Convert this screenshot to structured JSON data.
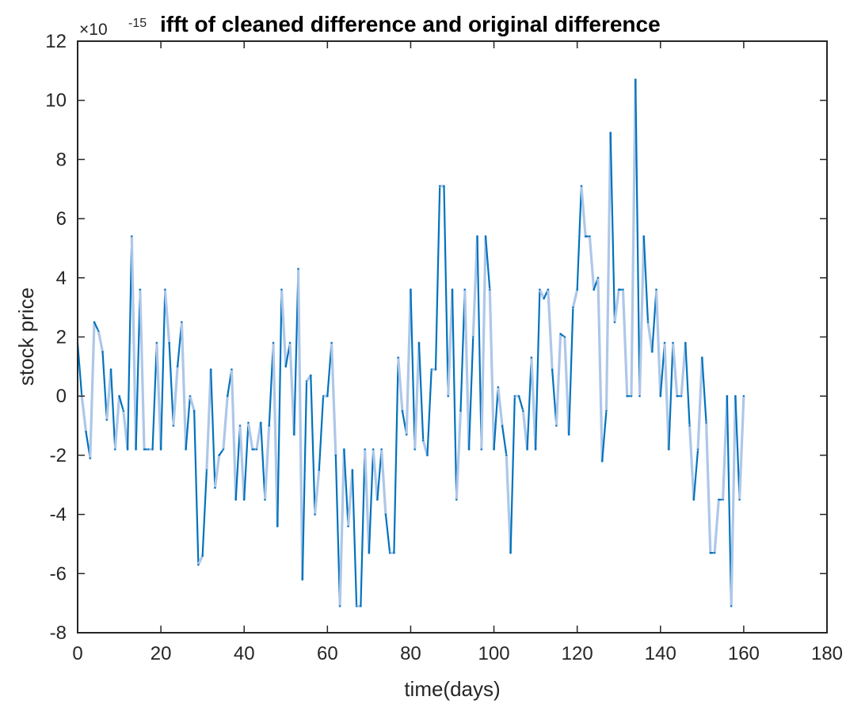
{
  "chart_data": {
    "type": "line",
    "title": "ifft of cleaned difference and original difference",
    "xlabel": "time(days)",
    "ylabel": "stock price",
    "y_exponent": {
      "base": "×10",
      "power": "-15"
    },
    "xlim": [
      0,
      180
    ],
    "ylim": [
      -8,
      12
    ],
    "xticks": [
      0,
      20,
      40,
      60,
      80,
      100,
      120,
      140,
      160,
      180
    ],
    "yticks": [
      -8,
      -6,
      -4,
      -2,
      0,
      2,
      4,
      6,
      8,
      10,
      12
    ],
    "grid": false,
    "colors": {
      "cleaned": "#0072bd",
      "original": "#aec7e8"
    },
    "series": [
      {
        "values": [
          [
            0,
            1.8
          ],
          [
            1,
            0
          ],
          [
            2,
            -1.2
          ],
          [
            3,
            -2.1
          ],
          [
            4,
            2.5
          ],
          [
            5,
            2.2
          ],
          [
            6,
            1.5
          ],
          [
            7,
            -0.8
          ],
          [
            8,
            0.9
          ],
          [
            9,
            -1.8
          ],
          [
            10,
            0
          ],
          [
            11,
            -0.5
          ],
          [
            12,
            -1.8
          ],
          [
            13,
            5.4
          ],
          [
            14,
            -1.8
          ],
          [
            15,
            3.6
          ],
          [
            16,
            -1.8
          ],
          [
            17,
            -1.8
          ],
          [
            18,
            -1.8
          ],
          [
            19,
            1.8
          ],
          [
            20,
            -1.8
          ],
          [
            21,
            3.6
          ],
          [
            22,
            1.8
          ],
          [
            23,
            -1
          ],
          [
            24,
            1
          ],
          [
            25,
            2.5
          ],
          [
            26,
            -1.8
          ],
          [
            27,
            0
          ],
          [
            28,
            -0.5
          ],
          [
            29,
            -5.7
          ],
          [
            30,
            -5.4
          ],
          [
            31,
            -2.5
          ],
          [
            32,
            0.9
          ],
          [
            33,
            -3.1
          ],
          [
            34,
            -2
          ],
          [
            35,
            -1.8
          ],
          [
            36,
            0
          ],
          [
            37,
            0.9
          ],
          [
            38,
            -3.5
          ],
          [
            39,
            -1
          ],
          [
            40,
            -3.5
          ],
          [
            41,
            -0.9
          ],
          [
            42,
            -1.8
          ],
          [
            43,
            -1.8
          ],
          [
            44,
            -0.9
          ],
          [
            45,
            -3.5
          ],
          [
            46,
            -1
          ],
          [
            47,
            1.8
          ],
          [
            48,
            -4.4
          ],
          [
            49,
            3.6
          ],
          [
            50,
            1
          ],
          [
            51,
            1.8
          ],
          [
            52,
            -1.3
          ],
          [
            53,
            4.3
          ],
          [
            54,
            -6.2
          ],
          [
            55,
            0.5
          ],
          [
            56,
            0.7
          ],
          [
            57,
            -4
          ],
          [
            58,
            -2.5
          ],
          [
            59,
            0
          ],
          [
            60,
            0
          ],
          [
            61,
            1.8
          ],
          [
            62,
            -2
          ],
          [
            63,
            -7.1
          ],
          [
            64,
            -1.8
          ],
          [
            65,
            -4.4
          ],
          [
            66,
            -2.5
          ],
          [
            67,
            -7.1
          ],
          [
            68,
            -7.1
          ],
          [
            69,
            -1.8
          ],
          [
            70,
            -5.3
          ],
          [
            71,
            -1.8
          ],
          [
            72,
            -3.5
          ],
          [
            73,
            -1.8
          ],
          [
            74,
            -4
          ],
          [
            75,
            -5.3
          ],
          [
            76,
            -5.3
          ],
          [
            77,
            1.3
          ],
          [
            78,
            -0.5
          ],
          [
            79,
            -1.3
          ],
          [
            80,
            3.6
          ],
          [
            81,
            -1.8
          ],
          [
            82,
            1.8
          ],
          [
            83,
            -1.5
          ],
          [
            84,
            -2
          ],
          [
            85,
            0.9
          ],
          [
            86,
            0.9
          ],
          [
            87,
            7.1
          ],
          [
            88,
            7.1
          ],
          [
            89,
            0
          ],
          [
            90,
            3.6
          ],
          [
            91,
            -3.5
          ],
          [
            92,
            -0.5
          ],
          [
            93,
            3.6
          ],
          [
            94,
            -1.8
          ],
          [
            95,
            2
          ],
          [
            96,
            5.4
          ],
          [
            97,
            -1.8
          ],
          [
            98,
            5.4
          ],
          [
            99,
            3.6
          ],
          [
            100,
            -1.8
          ],
          [
            101,
            0.3
          ],
          [
            102,
            -1
          ],
          [
            103,
            -2
          ],
          [
            104,
            -5.3
          ],
          [
            105,
            0
          ],
          [
            106,
            0
          ],
          [
            107,
            -0.5
          ],
          [
            108,
            -1.8
          ],
          [
            109,
            1.3
          ],
          [
            110,
            -1.8
          ],
          [
            111,
            3.6
          ],
          [
            112,
            3.3
          ],
          [
            113,
            3.6
          ],
          [
            114,
            0.9
          ],
          [
            115,
            -1
          ],
          [
            116,
            2.1
          ],
          [
            117,
            2
          ],
          [
            118,
            -1.3
          ],
          [
            119,
            3
          ],
          [
            120,
            3.6
          ],
          [
            121,
            7.1
          ],
          [
            122,
            5.4
          ],
          [
            123,
            5.4
          ],
          [
            124,
            3.6
          ],
          [
            125,
            4
          ],
          [
            126,
            -2.2
          ],
          [
            127,
            -0.5
          ],
          [
            128,
            8.9
          ],
          [
            129,
            2.5
          ],
          [
            130,
            3.6
          ],
          [
            131,
            3.6
          ],
          [
            132,
            0
          ],
          [
            133,
            0
          ],
          [
            134,
            10.7
          ],
          [
            135,
            0
          ],
          [
            136,
            5.4
          ],
          [
            137,
            2.5
          ],
          [
            138,
            1.5
          ],
          [
            139,
            3.6
          ],
          [
            140,
            0
          ],
          [
            141,
            1.8
          ],
          [
            142,
            -1.8
          ],
          [
            143,
            1.8
          ],
          [
            144,
            0
          ],
          [
            145,
            0
          ],
          [
            146,
            1.8
          ],
          [
            147,
            -1
          ],
          [
            148,
            -3.5
          ],
          [
            149,
            -1.8
          ],
          [
            150,
            1.3
          ],
          [
            151,
            -0.9
          ],
          [
            152,
            -5.3
          ],
          [
            153,
            -5.3
          ],
          [
            154,
            -3.5
          ],
          [
            155,
            -3.5
          ],
          [
            156,
            0
          ],
          [
            157,
            -7.1
          ],
          [
            158,
            0
          ],
          [
            159,
            -3.5
          ],
          [
            160,
            0
          ]
        ]
      }
    ]
  }
}
